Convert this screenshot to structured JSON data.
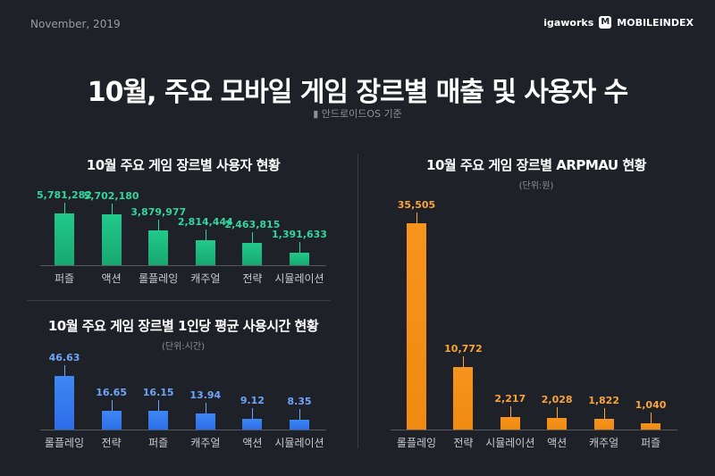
{
  "header": {
    "date": "November, 2019",
    "logo_brand": "igaworks",
    "logo_product": "MOBILEINDEX",
    "title": "10월, 주요 모바일 게임 장르별 매출 및 사용자 수",
    "subtitle": "안드로이드OS 기준",
    "subtitle_icon": "android-icon"
  },
  "colors": {
    "users": "#22c98c",
    "time": "#3f86f5",
    "arpmau": "#f7941d",
    "background": "#1f2129"
  },
  "chart_data": [
    {
      "type": "bar",
      "title": "10월 주요 게임 장르별 사용자 현황",
      "categories": [
        "퍼즐",
        "액션",
        "롤플레잉",
        "캐주얼",
        "전략",
        "시뮬레이션"
      ],
      "values": [
        5781282,
        5702180,
        3879977,
        2814444,
        2463815,
        1391633
      ],
      "labels": [
        "5,781,282",
        "5,702,180",
        "3,879,977",
        "2,814,444",
        "2,463,815",
        "1,391,633"
      ]
    },
    {
      "type": "bar",
      "title": "10월 주요 게임 장르별 1인당 평균 사용시간 현황",
      "unit": "(단위:시간)",
      "categories": [
        "롤플레잉",
        "전략",
        "퍼즐",
        "캐주얼",
        "액션",
        "시뮬레이션"
      ],
      "values": [
        46.63,
        16.65,
        16.15,
        13.94,
        9.12,
        8.35
      ],
      "labels": [
        "46.63",
        "16.65",
        "16.15",
        "13.94",
        "9.12",
        "8.35"
      ]
    },
    {
      "type": "bar",
      "title": "10월 주요 게임 장르별 ARPMAU 현황",
      "unit": "(단위:원)",
      "categories": [
        "롤플레잉",
        "전략",
        "시뮬레이션",
        "액션",
        "캐주얼",
        "퍼즐"
      ],
      "values": [
        35505,
        10772,
        2217,
        2028,
        1822,
        1040
      ],
      "labels": [
        "35,505",
        "10,772",
        "2,217",
        "2,028",
        "1,822",
        "1,040"
      ]
    }
  ]
}
